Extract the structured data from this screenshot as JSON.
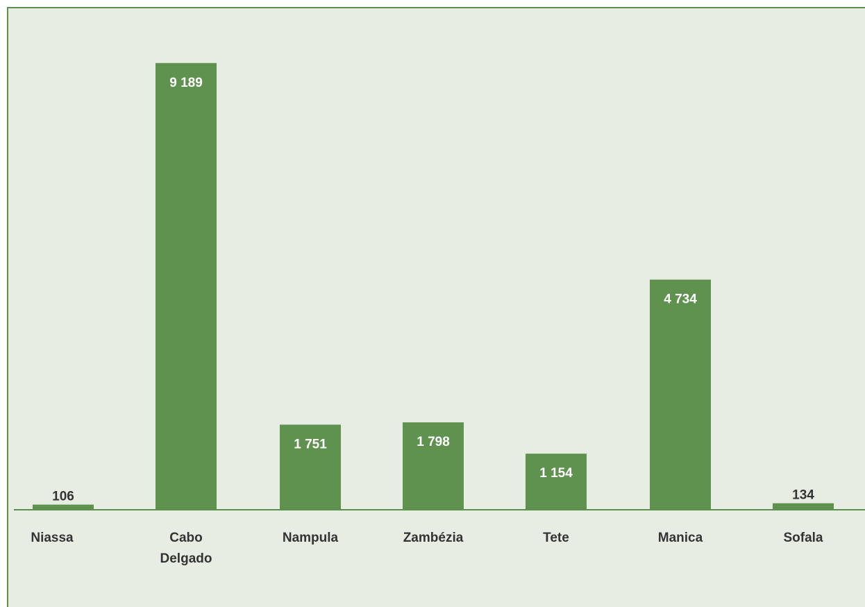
{
  "chart_data": {
    "type": "bar",
    "categories": [
      "Niassa",
      "Cabo Delgado",
      "Nampula",
      "Zambézia",
      "Tete",
      "Manica",
      "Sofala"
    ],
    "category_lines": [
      [
        "Niassa"
      ],
      [
        "Cabo",
        "Delgado"
      ],
      [
        "Nampula"
      ],
      [
        "Zambézia"
      ],
      [
        "Tete"
      ],
      [
        "Manica"
      ],
      [
        "Sofala"
      ]
    ],
    "values": [
      106,
      9189,
      1751,
      1798,
      1154,
      4734,
      134
    ],
    "value_labels": [
      "106",
      "9 189",
      "1 751",
      "1 798",
      "1 154",
      "4 734",
      "134"
    ],
    "title": "",
    "xlabel": "",
    "ylabel": "",
    "ylim": [
      0,
      10000
    ],
    "grid": false,
    "legend": "none",
    "colors": {
      "bar": "#5f914f",
      "axis": "#5b8f4c",
      "background": "#e8ede3",
      "label_inside": "#ffffff",
      "label_outside": "#333333"
    }
  }
}
